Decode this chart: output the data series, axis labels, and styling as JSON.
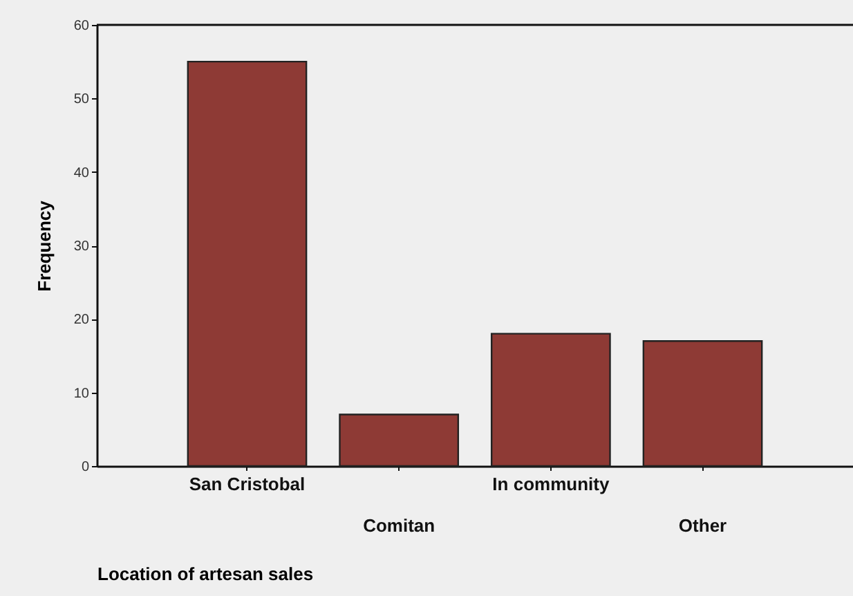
{
  "chart_data": {
    "type": "bar",
    "xlabel": "Location of artesan sales",
    "ylabel": "Frequency",
    "categories": [
      "San Cristobal",
      "Comitan",
      "In community",
      "Other"
    ],
    "values": [
      55,
      7,
      18,
      17
    ],
    "color": "#8e3a35",
    "ylim": [
      0,
      60
    ],
    "yticks": [
      0,
      10,
      20,
      30,
      40,
      50,
      60
    ],
    "grid": false
  }
}
